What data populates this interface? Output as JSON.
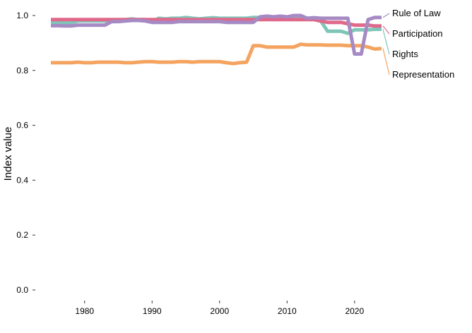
{
  "chart_data": {
    "type": "line",
    "title": "",
    "xlabel": "",
    "ylabel": "Index value",
    "xlim": [
      1975,
      2024
    ],
    "ylim": [
      0,
      1
    ],
    "x_ticks": [
      1980,
      1990,
      2000,
      2010,
      2020
    ],
    "y_ticks": [
      "0.0",
      "0.2",
      "0.4",
      "0.6",
      "0.8",
      "1.0"
    ],
    "grid": false,
    "legend": "direct labels at right end of lines",
    "x": [
      1975,
      1976,
      1977,
      1978,
      1979,
      1980,
      1981,
      1982,
      1983,
      1984,
      1985,
      1986,
      1987,
      1988,
      1989,
      1990,
      1991,
      1992,
      1993,
      1994,
      1995,
      1996,
      1997,
      1998,
      1999,
      2000,
      2001,
      2002,
      2003,
      2004,
      2005,
      2006,
      2007,
      2008,
      2009,
      2010,
      2011,
      2012,
      2013,
      2014,
      2015,
      2016,
      2017,
      2018,
      2019,
      2020,
      2021,
      2022,
      2023,
      2024
    ],
    "series": [
      {
        "name": "Rights",
        "color": "#7fc6b9",
        "values": [
          0.973,
          0.973,
          0.973,
          0.973,
          0.98,
          0.98,
          0.98,
          0.98,
          0.98,
          0.98,
          0.982,
          0.985,
          0.988,
          0.985,
          0.985,
          0.978,
          0.99,
          0.988,
          0.99,
          0.99,
          0.993,
          0.99,
          0.988,
          0.99,
          0.992,
          0.99,
          0.99,
          0.99,
          0.99,
          0.99,
          0.993,
          0.993,
          0.99,
          0.99,
          0.99,
          0.99,
          0.99,
          0.99,
          0.988,
          0.985,
          0.98,
          0.943,
          0.943,
          0.943,
          0.935,
          0.948,
          0.948,
          0.948,
          0.95,
          0.95
        ]
      },
      {
        "name": "Representation",
        "color": "#f4a460",
        "values": [
          0.828,
          0.828,
          0.828,
          0.828,
          0.83,
          0.828,
          0.828,
          0.83,
          0.83,
          0.83,
          0.83,
          0.828,
          0.828,
          0.83,
          0.832,
          0.832,
          0.83,
          0.83,
          0.83,
          0.832,
          0.832,
          0.83,
          0.832,
          0.832,
          0.832,
          0.832,
          0.828,
          0.825,
          0.828,
          0.83,
          0.89,
          0.89,
          0.885,
          0.885,
          0.885,
          0.885,
          0.885,
          0.895,
          0.893,
          0.893,
          0.893,
          0.892,
          0.892,
          0.892,
          0.89,
          0.89,
          0.89,
          0.885,
          0.878,
          0.88
        ]
      },
      {
        "name": "Participation",
        "color": "#e0688a",
        "values": [
          0.985,
          0.985,
          0.985,
          0.985,
          0.985,
          0.985,
          0.985,
          0.985,
          0.985,
          0.985,
          0.985,
          0.985,
          0.985,
          0.985,
          0.985,
          0.985,
          0.985,
          0.985,
          0.985,
          0.985,
          0.985,
          0.985,
          0.985,
          0.985,
          0.985,
          0.985,
          0.985,
          0.985,
          0.985,
          0.985,
          0.985,
          0.985,
          0.985,
          0.985,
          0.985,
          0.985,
          0.985,
          0.985,
          0.985,
          0.985,
          0.98,
          0.975,
          0.975,
          0.975,
          0.97,
          0.965,
          0.965,
          0.965,
          0.962,
          0.962
        ]
      },
      {
        "name": "Rule of Law",
        "color": "#a68ac4",
        "values": [
          0.963,
          0.963,
          0.962,
          0.962,
          0.965,
          0.965,
          0.965,
          0.965,
          0.965,
          0.978,
          0.978,
          0.98,
          0.982,
          0.982,
          0.98,
          0.975,
          0.975,
          0.975,
          0.975,
          0.978,
          0.978,
          0.978,
          0.978,
          0.978,
          0.978,
          0.978,
          0.975,
          0.975,
          0.975,
          0.975,
          0.975,
          0.995,
          0.998,
          0.995,
          0.998,
          0.995,
          1.0,
          1.0,
          0.99,
          0.992,
          0.99,
          0.99,
          0.99,
          0.99,
          0.99,
          0.86,
          0.86,
          0.985,
          0.993,
          0.993
        ]
      }
    ]
  }
}
